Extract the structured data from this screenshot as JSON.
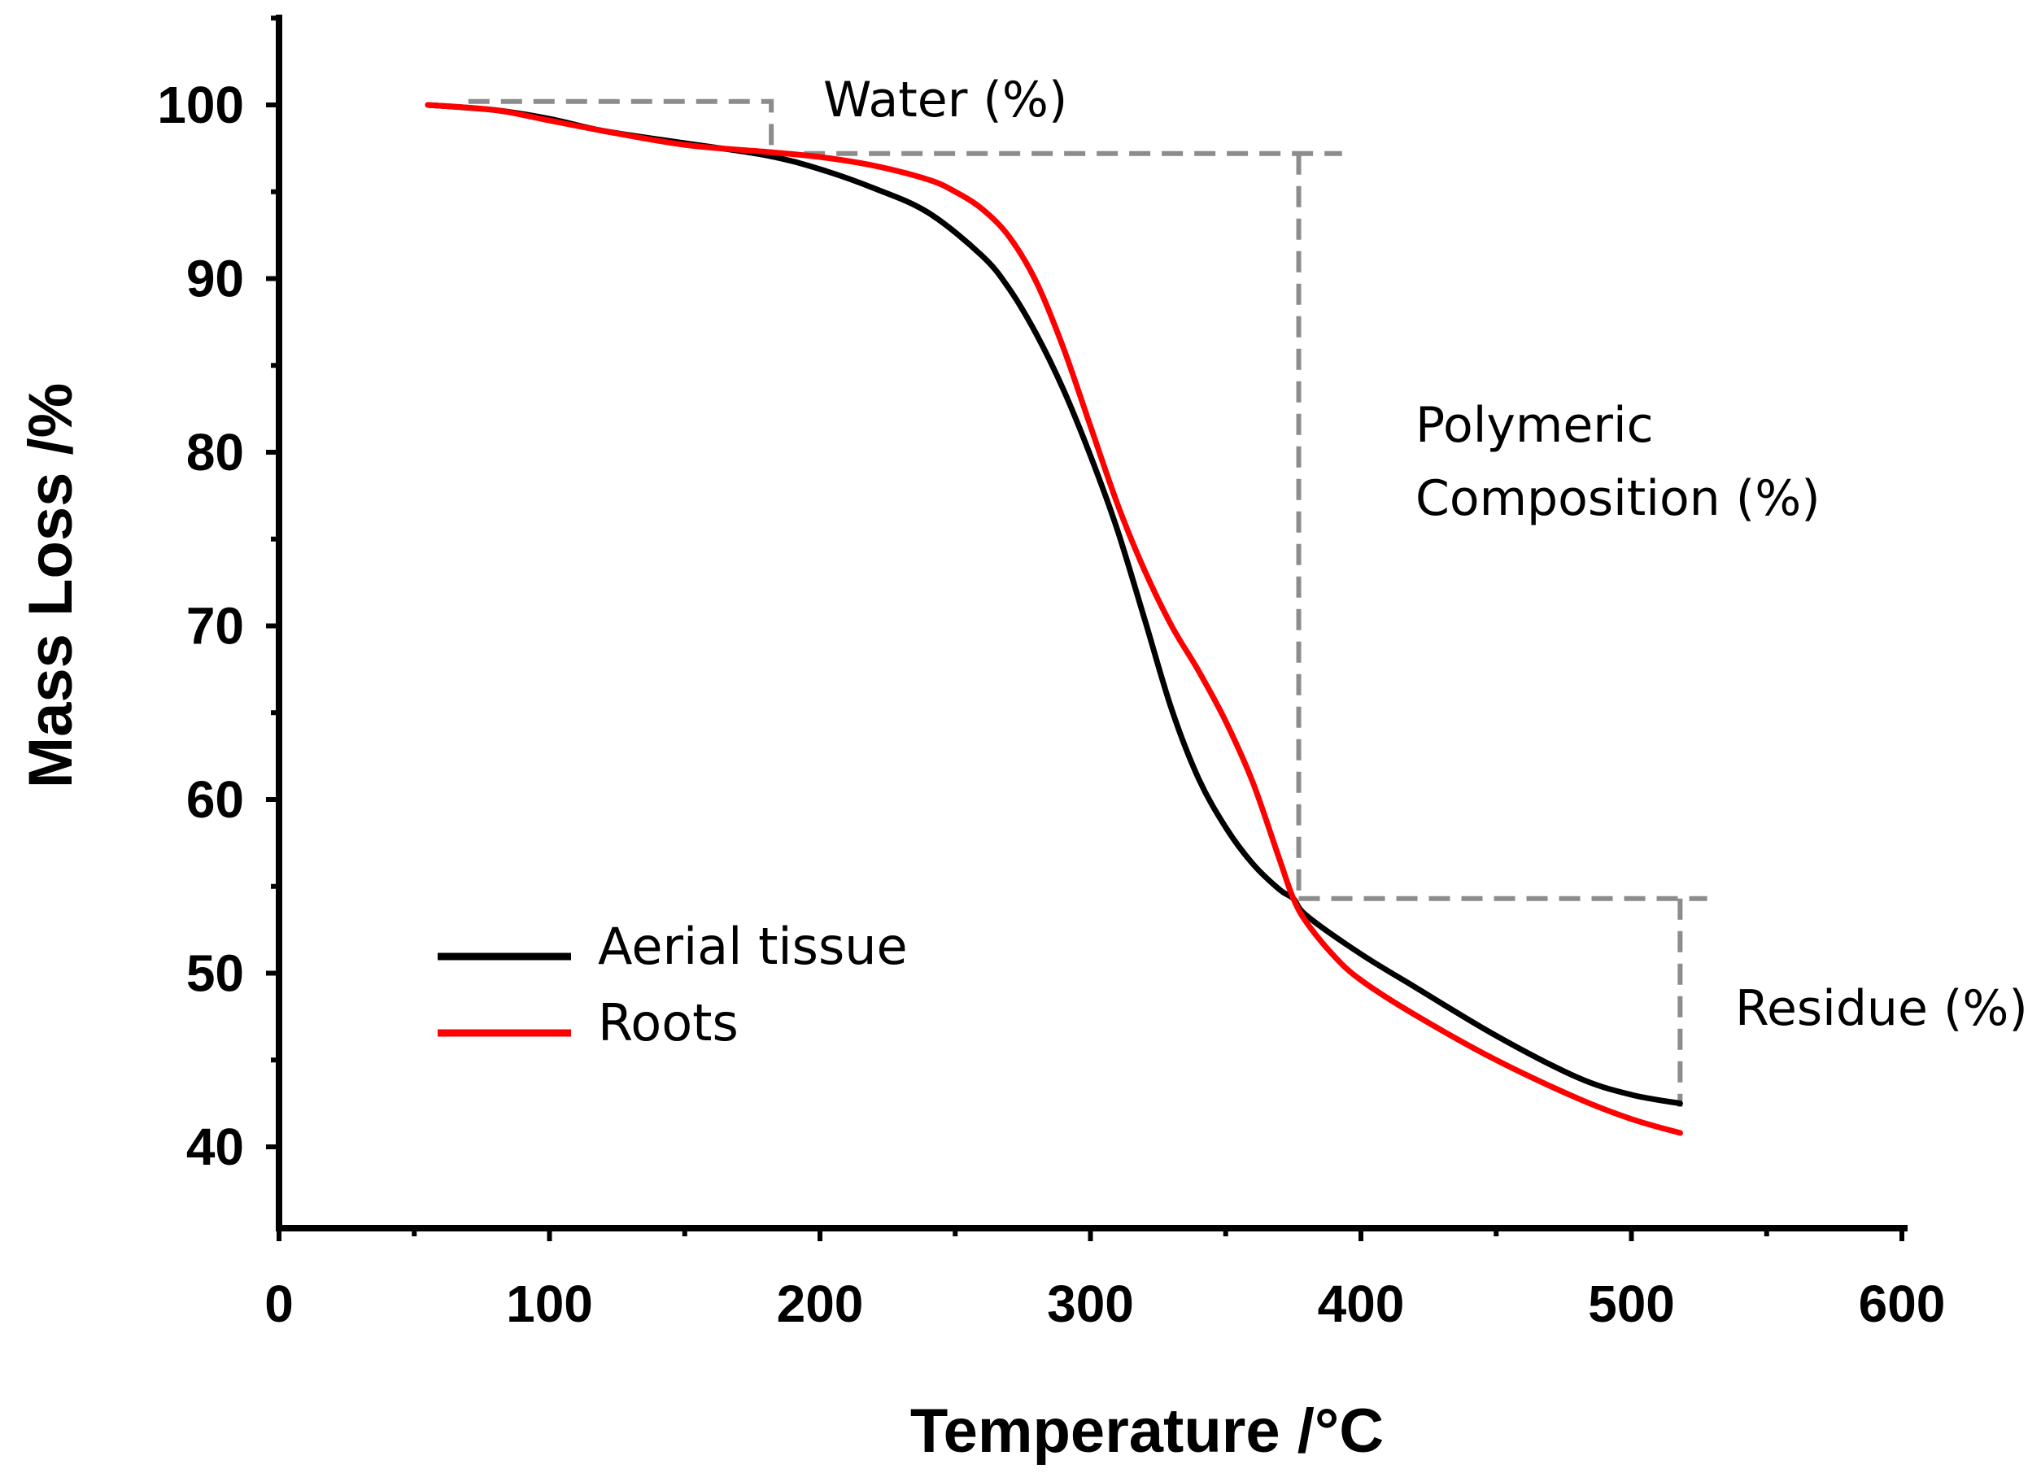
{
  "chart_data": {
    "type": "line",
    "title": "",
    "xlabel": "Temperature /°C",
    "ylabel": "Mass Loss /%",
    "xlim": [
      0,
      600
    ],
    "ylim": [
      35,
      105
    ],
    "x_ticks": [
      "0",
      "100",
      "200",
      "300",
      "400",
      "500",
      "600"
    ],
    "y_ticks": [
      "40",
      "50",
      "60",
      "70",
      "80",
      "90",
      "100"
    ],
    "grid": false,
    "legend_position": "bottom-left",
    "series": [
      {
        "name": "Aerial tissue",
        "color": "#000000",
        "x": [
          55,
          80,
          100,
          120,
          150,
          180,
          200,
          220,
          240,
          260,
          270,
          280,
          290,
          300,
          310,
          320,
          330,
          340,
          350,
          360,
          370,
          375,
          380,
          400,
          420,
          450,
          480,
          500,
          518
        ],
        "y": [
          100,
          99.7,
          99.2,
          98.5,
          97.8,
          97.1,
          96.3,
          95.2,
          93.8,
          91.3,
          89.4,
          86.8,
          83.6,
          79.8,
          75.5,
          70.4,
          65.2,
          61.2,
          58.4,
          56.3,
          54.8,
          54.3,
          53.3,
          51.1,
          49.2,
          46.4,
          44.0,
          43.0,
          42.5
        ]
      },
      {
        "name": "Roots",
        "color": "#ff0000",
        "x": [
          55,
          80,
          100,
          120,
          150,
          180,
          200,
          220,
          240,
          250,
          260,
          270,
          280,
          290,
          300,
          310,
          320,
          330,
          340,
          350,
          360,
          370,
          375,
          380,
          390,
          400,
          420,
          450,
          480,
          500,
          518
        ],
        "y": [
          100,
          99.7,
          99.1,
          98.5,
          97.7,
          97.3,
          97.0,
          96.5,
          95.7,
          95.0,
          94.0,
          92.4,
          89.8,
          86.0,
          81.5,
          77.0,
          73.2,
          70.0,
          67.4,
          64.5,
          61.0,
          56.5,
          54.3,
          52.9,
          51.0,
          49.6,
          47.6,
          45.0,
          42.8,
          41.6,
          40.8
        ]
      }
    ],
    "annotations": [
      {
        "id": "water",
        "label": "Water (%)"
      },
      {
        "id": "polymeric",
        "label_line1": "Polymeric",
        "label_line2": "Composition (%)"
      },
      {
        "id": "residue",
        "label": "Residue (%)"
      }
    ],
    "guide_lines": {
      "water_step": {
        "x_start": 70,
        "x_end": 182,
        "y_top": 100.2,
        "y_bottom": 97.2
      },
      "polymeric_step": {
        "x_start": 182,
        "x_end": 393,
        "x_drop": 377,
        "y_top": 97.2,
        "y_bottom": 54.3
      },
      "residue_step": {
        "x_start": 377,
        "x_end": 528,
        "x_drop": 518,
        "y_top": 54.3,
        "y_bottom": 42.3
      }
    }
  }
}
